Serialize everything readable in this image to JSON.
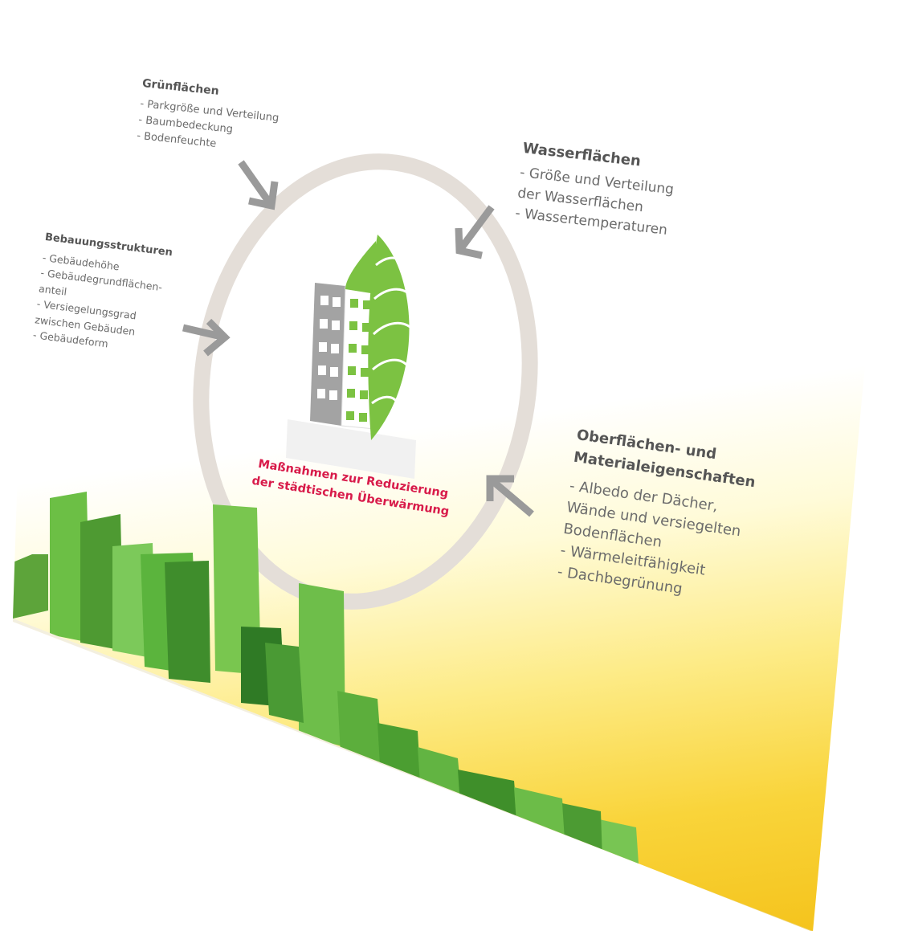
{
  "diagram": {
    "center_caption": "Maßnahmen zur Reduzierung der städtischen Überwärmung",
    "center_icon": "building-leaf-icon",
    "groups": {
      "gruenflaechen": {
        "title": "Grünflächen",
        "items": [
          "- Parkgröße und Verteilung",
          "- Baumbedeckung",
          "- Bodenfeuchte"
        ]
      },
      "wasserflaechen": {
        "title": "Wasserflächen",
        "items": [
          "- Größe und Verteilung",
          "der Wasserflächen",
          "- Wassertemperaturen"
        ]
      },
      "bebauungsstrukturen": {
        "title": "Bebauungsstrukturen",
        "items": [
          "- Gebäudehöhe",
          "- Gebäudegrundflächen-",
          "anteil",
          "- Versiegelungsgrad",
          "zwischen Gebäuden",
          "- Gebäudeform"
        ]
      },
      "oberflaechen": {
        "title_line1": "Oberflächen- und",
        "title_line2": "Materialeigenschaften",
        "items": [
          "- Albedo der Dächer,",
          "Wände und versiegelten",
          "Bodenflächen",
          "- Wärmeleitfähigkeit",
          "- Dachbegrünung"
        ]
      }
    },
    "colors": {
      "accent_red": "#d81b4a",
      "leaf_green": "#7cc242",
      "ring_gray": "#e4ded8",
      "arrow_gray": "#9a9a9a",
      "building_gray": "#9b9b9b"
    }
  }
}
